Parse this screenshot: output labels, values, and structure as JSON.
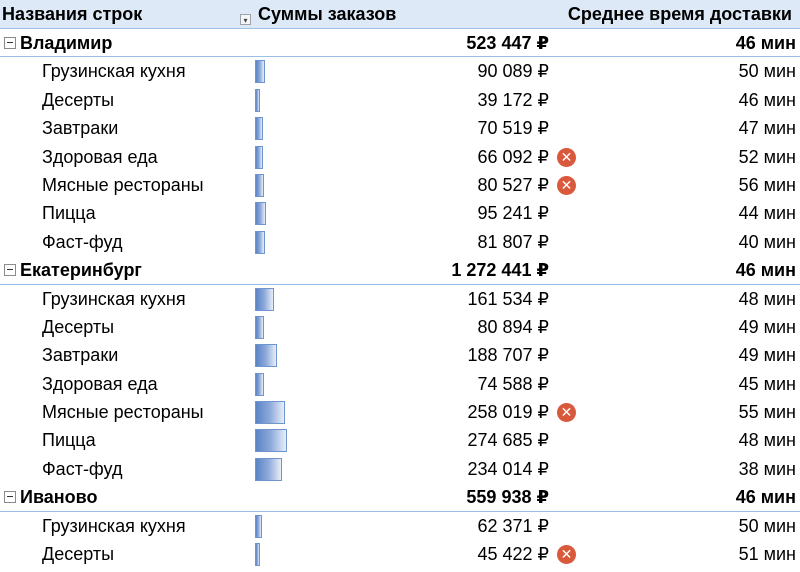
{
  "header": {
    "col1": "Названия строк",
    "col2": "Суммы заказов",
    "col3": "Среднее время доставки"
  },
  "colors": {
    "header_bg": "#dde9f6",
    "header_border": "#9bc2e6",
    "databar": "#5b84c6",
    "error_icon": "#d9593c"
  },
  "icons": {
    "error": "error-x-icon",
    "collapse": "minus-box-icon",
    "filter": "filter-dropdown-icon"
  },
  "rows": [
    {
      "type": "city",
      "label": "Владимир",
      "amount": "523 447 ₽",
      "time": "46 мин"
    },
    {
      "type": "item",
      "label": "Грузинская кухня",
      "amount": "90 089 ₽",
      "time": "50 мин",
      "bar": 90089,
      "error": false
    },
    {
      "type": "item",
      "label": "Десерты",
      "amount": "39 172 ₽",
      "time": "46 мин",
      "bar": 39172,
      "error": false
    },
    {
      "type": "item",
      "label": "Завтраки",
      "amount": "70 519 ₽",
      "time": "47 мин",
      "bar": 70519,
      "error": false
    },
    {
      "type": "item",
      "label": "Здоровая еда",
      "amount": "66 092 ₽",
      "time": "52 мин",
      "bar": 66092,
      "error": true
    },
    {
      "type": "item",
      "label": "Мясные рестораны",
      "amount": "80 527 ₽",
      "time": "56 мин",
      "bar": 80527,
      "error": true
    },
    {
      "type": "item",
      "label": "Пицца",
      "amount": "95 241 ₽",
      "time": "44 мин",
      "bar": 95241,
      "error": false
    },
    {
      "type": "item",
      "label": "Фаст-фуд",
      "amount": "81 807 ₽",
      "time": "40 мин",
      "bar": 81807,
      "error": false
    },
    {
      "type": "city",
      "label": "Екатеринбург",
      "amount": "1 272 441 ₽",
      "time": "46 мин"
    },
    {
      "type": "item",
      "label": "Грузинская кухня",
      "amount": "161 534 ₽",
      "time": "48 мин",
      "bar": 161534,
      "error": false
    },
    {
      "type": "item",
      "label": "Десерты",
      "amount": "80 894 ₽",
      "time": "49 мин",
      "bar": 80894,
      "error": false
    },
    {
      "type": "item",
      "label": "Завтраки",
      "amount": "188 707 ₽",
      "time": "49 мин",
      "bar": 188707,
      "error": false
    },
    {
      "type": "item",
      "label": "Здоровая еда",
      "amount": "74 588 ₽",
      "time": "45 мин",
      "bar": 74588,
      "error": false
    },
    {
      "type": "item",
      "label": "Мясные рестораны",
      "amount": "258 019 ₽",
      "time": "55 мин",
      "bar": 258019,
      "error": true
    },
    {
      "type": "item",
      "label": "Пицца",
      "amount": "274 685 ₽",
      "time": "48 мин",
      "bar": 274685,
      "error": false
    },
    {
      "type": "item",
      "label": "Фаст-фуд",
      "amount": "234 014 ₽",
      "time": "38 мин",
      "bar": 234014,
      "error": false
    },
    {
      "type": "city",
      "label": "Иваново",
      "amount": "559 938 ₽",
      "time": "46 мин"
    },
    {
      "type": "item",
      "label": "Грузинская кухня",
      "amount": "62 371 ₽",
      "time": "50 мин",
      "bar": 62371,
      "error": false
    },
    {
      "type": "item",
      "label": "Десерты",
      "amount": "45 422 ₽",
      "time": "51 мин",
      "bar": 45422,
      "error": true
    }
  ]
}
